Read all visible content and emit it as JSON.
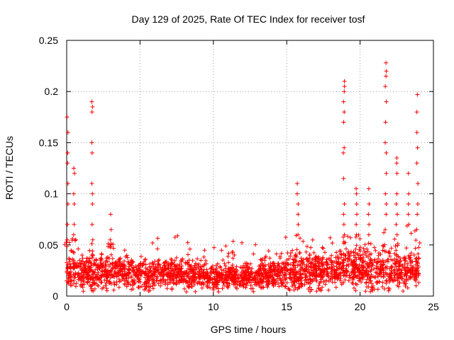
{
  "chart_data": {
    "type": "scatter",
    "title": "Day 129 of 2025, Rate Of TEC Index for receiver tosf",
    "xlabel": "GPS time / hours",
    "ylabel": "ROTI / TECUs",
    "xlim": [
      0,
      25
    ],
    "ylim": [
      0,
      0.25
    ],
    "x_ticks": [
      0,
      5,
      10,
      15,
      20,
      25
    ],
    "y_ticks": [
      0,
      0.05,
      0.1,
      0.15,
      0.2,
      0.25
    ],
    "x_tick_labels": [
      "0",
      "5",
      "10",
      "15",
      "20",
      "25"
    ],
    "y_tick_labels": [
      "0",
      "0.05",
      "0.1",
      "0.15",
      "0.2",
      "0.25"
    ],
    "grid": true,
    "marker": "+",
    "color": "#ff0000",
    "series": [
      {
        "name": "ROTI",
        "spikes": [
          {
            "x": 0.05,
            "y_values": [
              0.175,
              0.16,
              0.14,
              0.13,
              0.11,
              0.09,
              0.07,
              0.055
            ]
          },
          {
            "x": 0.5,
            "y_values": [
              0.125,
              0.12,
              0.1,
              0.09,
              0.07,
              0.06
            ]
          },
          {
            "x": 1.75,
            "y_values": [
              0.19,
              0.185,
              0.18,
              0.15,
              0.14,
              0.11,
              0.1,
              0.09,
              0.07,
              0.055
            ]
          },
          {
            "x": 3.0,
            "y_values": [
              0.08,
              0.065,
              0.055
            ]
          },
          {
            "x": 15.75,
            "y_values": [
              0.11,
              0.1,
              0.09,
              0.08,
              0.07,
              0.06
            ]
          },
          {
            "x": 18.9,
            "y_values": [
              0.21,
              0.205,
              0.2,
              0.19,
              0.18,
              0.17,
              0.145,
              0.14,
              0.115,
              0.09,
              0.08,
              0.07,
              0.06
            ]
          },
          {
            "x": 19.75,
            "y_values": [
              0.105,
              0.1,
              0.09,
              0.08,
              0.07,
              0.06
            ]
          },
          {
            "x": 20.6,
            "y_values": [
              0.105,
              0.09,
              0.08,
              0.07,
              0.06
            ]
          },
          {
            "x": 21.75,
            "y_values": [
              0.228,
              0.22,
              0.215,
              0.205,
              0.19,
              0.17,
              0.15,
              0.14,
              0.12,
              0.1,
              0.09,
              0.08,
              0.065
            ]
          },
          {
            "x": 22.5,
            "y_values": [
              0.135,
              0.13,
              0.12,
              0.1,
              0.09,
              0.08,
              0.07,
              0.06
            ]
          },
          {
            "x": 23.3,
            "y_values": [
              0.12,
              0.1,
              0.09,
              0.08,
              0.07
            ]
          },
          {
            "x": 23.9,
            "y_values": [
              0.197,
              0.18,
              0.16,
              0.145,
              0.13,
              0.11,
              0.09,
              0.08,
              0.065
            ]
          }
        ],
        "baseline_profile": [
          {
            "x": 0,
            "y_mean": 0.022,
            "y_spread": 0.014
          },
          {
            "x": 2,
            "y_mean": 0.024,
            "y_spread": 0.015
          },
          {
            "x": 5,
            "y_mean": 0.022,
            "y_spread": 0.013
          },
          {
            "x": 8,
            "y_mean": 0.021,
            "y_spread": 0.012
          },
          {
            "x": 10,
            "y_mean": 0.018,
            "y_spread": 0.01
          },
          {
            "x": 13,
            "y_mean": 0.02,
            "y_spread": 0.012
          },
          {
            "x": 16,
            "y_mean": 0.023,
            "y_spread": 0.014
          },
          {
            "x": 19,
            "y_mean": 0.026,
            "y_spread": 0.016
          },
          {
            "x": 22,
            "y_mean": 0.025,
            "y_spread": 0.016
          },
          {
            "x": 24,
            "y_mean": 0.023,
            "y_spread": 0.014
          }
        ],
        "x_range": [
          0,
          24
        ]
      }
    ]
  }
}
